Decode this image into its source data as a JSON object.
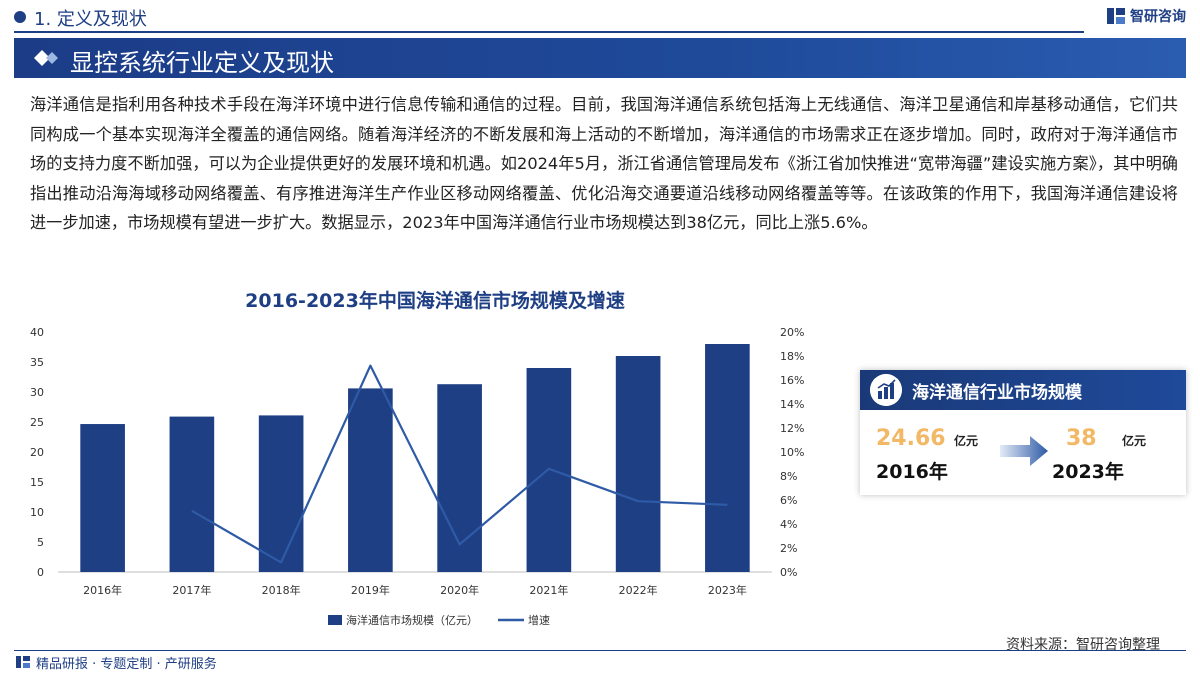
{
  "header": {
    "section": "1. 定义及现状",
    "logo_text": "智研咨询",
    "banner_title": "显控系统行业定义及现状"
  },
  "paragraph": "海洋通信是指利用各种技术手段在海洋环境中进行信息传输和通信的过程。目前，我国海洋通信系统包括海上无线通信、海洋卫星通信和岸基移动通信，它们共同构成一个基本实现海洋全覆盖的通信网络。随着海洋经济的不断发展和海上活动的不断增加，海洋通信的市场需求正在逐步增加。同时，政府对于海洋通信市场的支持力度不断加强，可以为企业提供更好的发展环境和机遇。如2024年5月，浙江省通信管理局发布《浙江省加快推进“宽带海疆”建设实施方案》，其中明确指出推动沿海海域移动网络覆盖、有序推进海洋生产作业区移动网络覆盖、优化沿海交通要道沿线移动网络覆盖等等。在该政策的作用下，我国海洋通信建设将进一步加速，市场规模有望进一步扩大。数据显示，2023年中国海洋通信行业市场规模达到38亿元，同比上涨5.6%。",
  "chart_data": {
    "type": "bar",
    "title": "2016-2023年中国海洋通信市场规模及增速",
    "categories": [
      "2016年",
      "2017年",
      "2018年",
      "2019年",
      "2020年",
      "2021年",
      "2022年",
      "2023年"
    ],
    "series": [
      {
        "name": "海洋通信市场规模（亿元）",
        "type": "bar",
        "axis": "left",
        "values": [
          24.66,
          25.9,
          26.1,
          30.6,
          31.3,
          34.0,
          36.0,
          38.0
        ]
      },
      {
        "name": "增速",
        "type": "line",
        "axis": "right",
        "values": [
          null,
          5.1,
          0.8,
          17.2,
          2.3,
          8.6,
          5.9,
          5.6
        ]
      }
    ],
    "y_left": {
      "min": 0,
      "max": 40,
      "ticks": [
        "0",
        "5",
        "10",
        "15",
        "20",
        "25",
        "30",
        "35",
        "40"
      ]
    },
    "y_right": {
      "min": 0,
      "max": 20,
      "ticks": [
        "0%",
        "2%",
        "4%",
        "6%",
        "8%",
        "10%",
        "12%",
        "14%",
        "16%",
        "18%",
        "20%"
      ]
    },
    "legend_position": "bottom",
    "grid": false,
    "colors": {
      "bar": "#1f3f85",
      "line": "#2e5aa6"
    }
  },
  "kpi": {
    "title": "海洋通信行业市场规模",
    "value1": "24.66",
    "unit1": "亿元",
    "year1": "2016年",
    "value2": "38",
    "unit2": "亿元",
    "year2": "2023年"
  },
  "source": "资料来源：智研咨询整理",
  "footer": "精品研报 · 专题定制 · 产研服务",
  "colors": {
    "brand": "#1f3f85",
    "highlight": "#f2b866"
  }
}
